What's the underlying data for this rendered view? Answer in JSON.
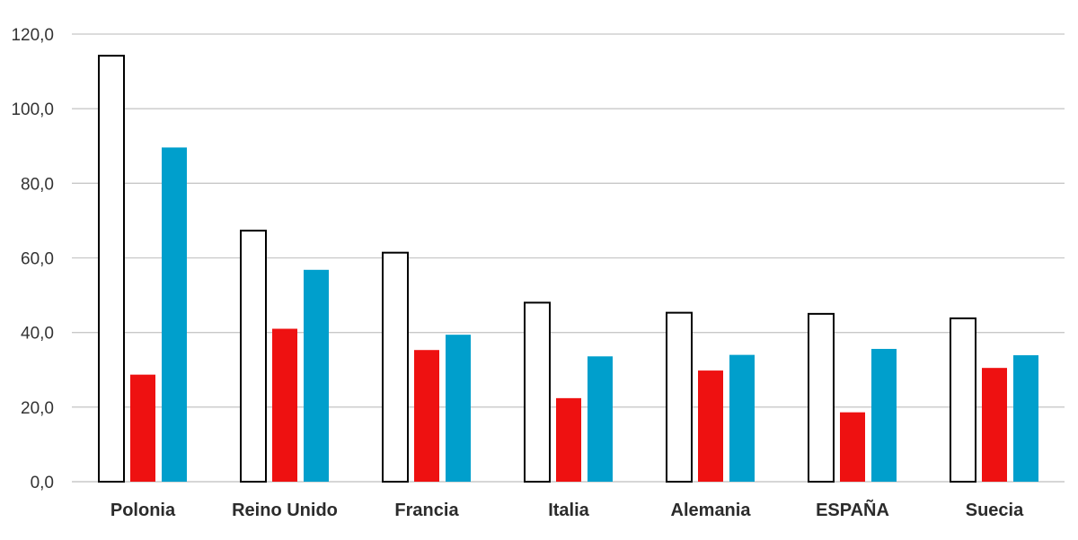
{
  "chart_data": {
    "type": "bar",
    "title": "",
    "xlabel": "",
    "ylabel": "",
    "ylim": [
      0,
      120
    ],
    "ytick_values": [
      0,
      20,
      40,
      60,
      80,
      100,
      120
    ],
    "ytick_labels": [
      "0,0",
      "20,0",
      "40,0",
      "60,0",
      "80,0",
      "100,0",
      "120,0"
    ],
    "categories": [
      "Polonia",
      "Reino Unido",
      "Francia",
      "Italia",
      "Alemania",
      "ESPAÑA",
      "Suecia"
    ],
    "series": [
      {
        "fill": "#ffffff",
        "stroke": "#000000",
        "values": [
          114.2,
          67.3,
          61.4,
          48.0,
          45.3,
          45.0,
          43.8
        ]
      },
      {
        "fill": "#ee1111",
        "stroke": "none",
        "values": [
          28.7,
          41.0,
          35.3,
          22.4,
          29.8,
          18.6,
          30.5
        ]
      },
      {
        "fill": "#009fcc",
        "stroke": "none",
        "values": [
          89.6,
          56.8,
          39.4,
          33.6,
          34.0,
          35.6,
          33.9
        ]
      }
    ],
    "grid": true,
    "legend": "none"
  }
}
